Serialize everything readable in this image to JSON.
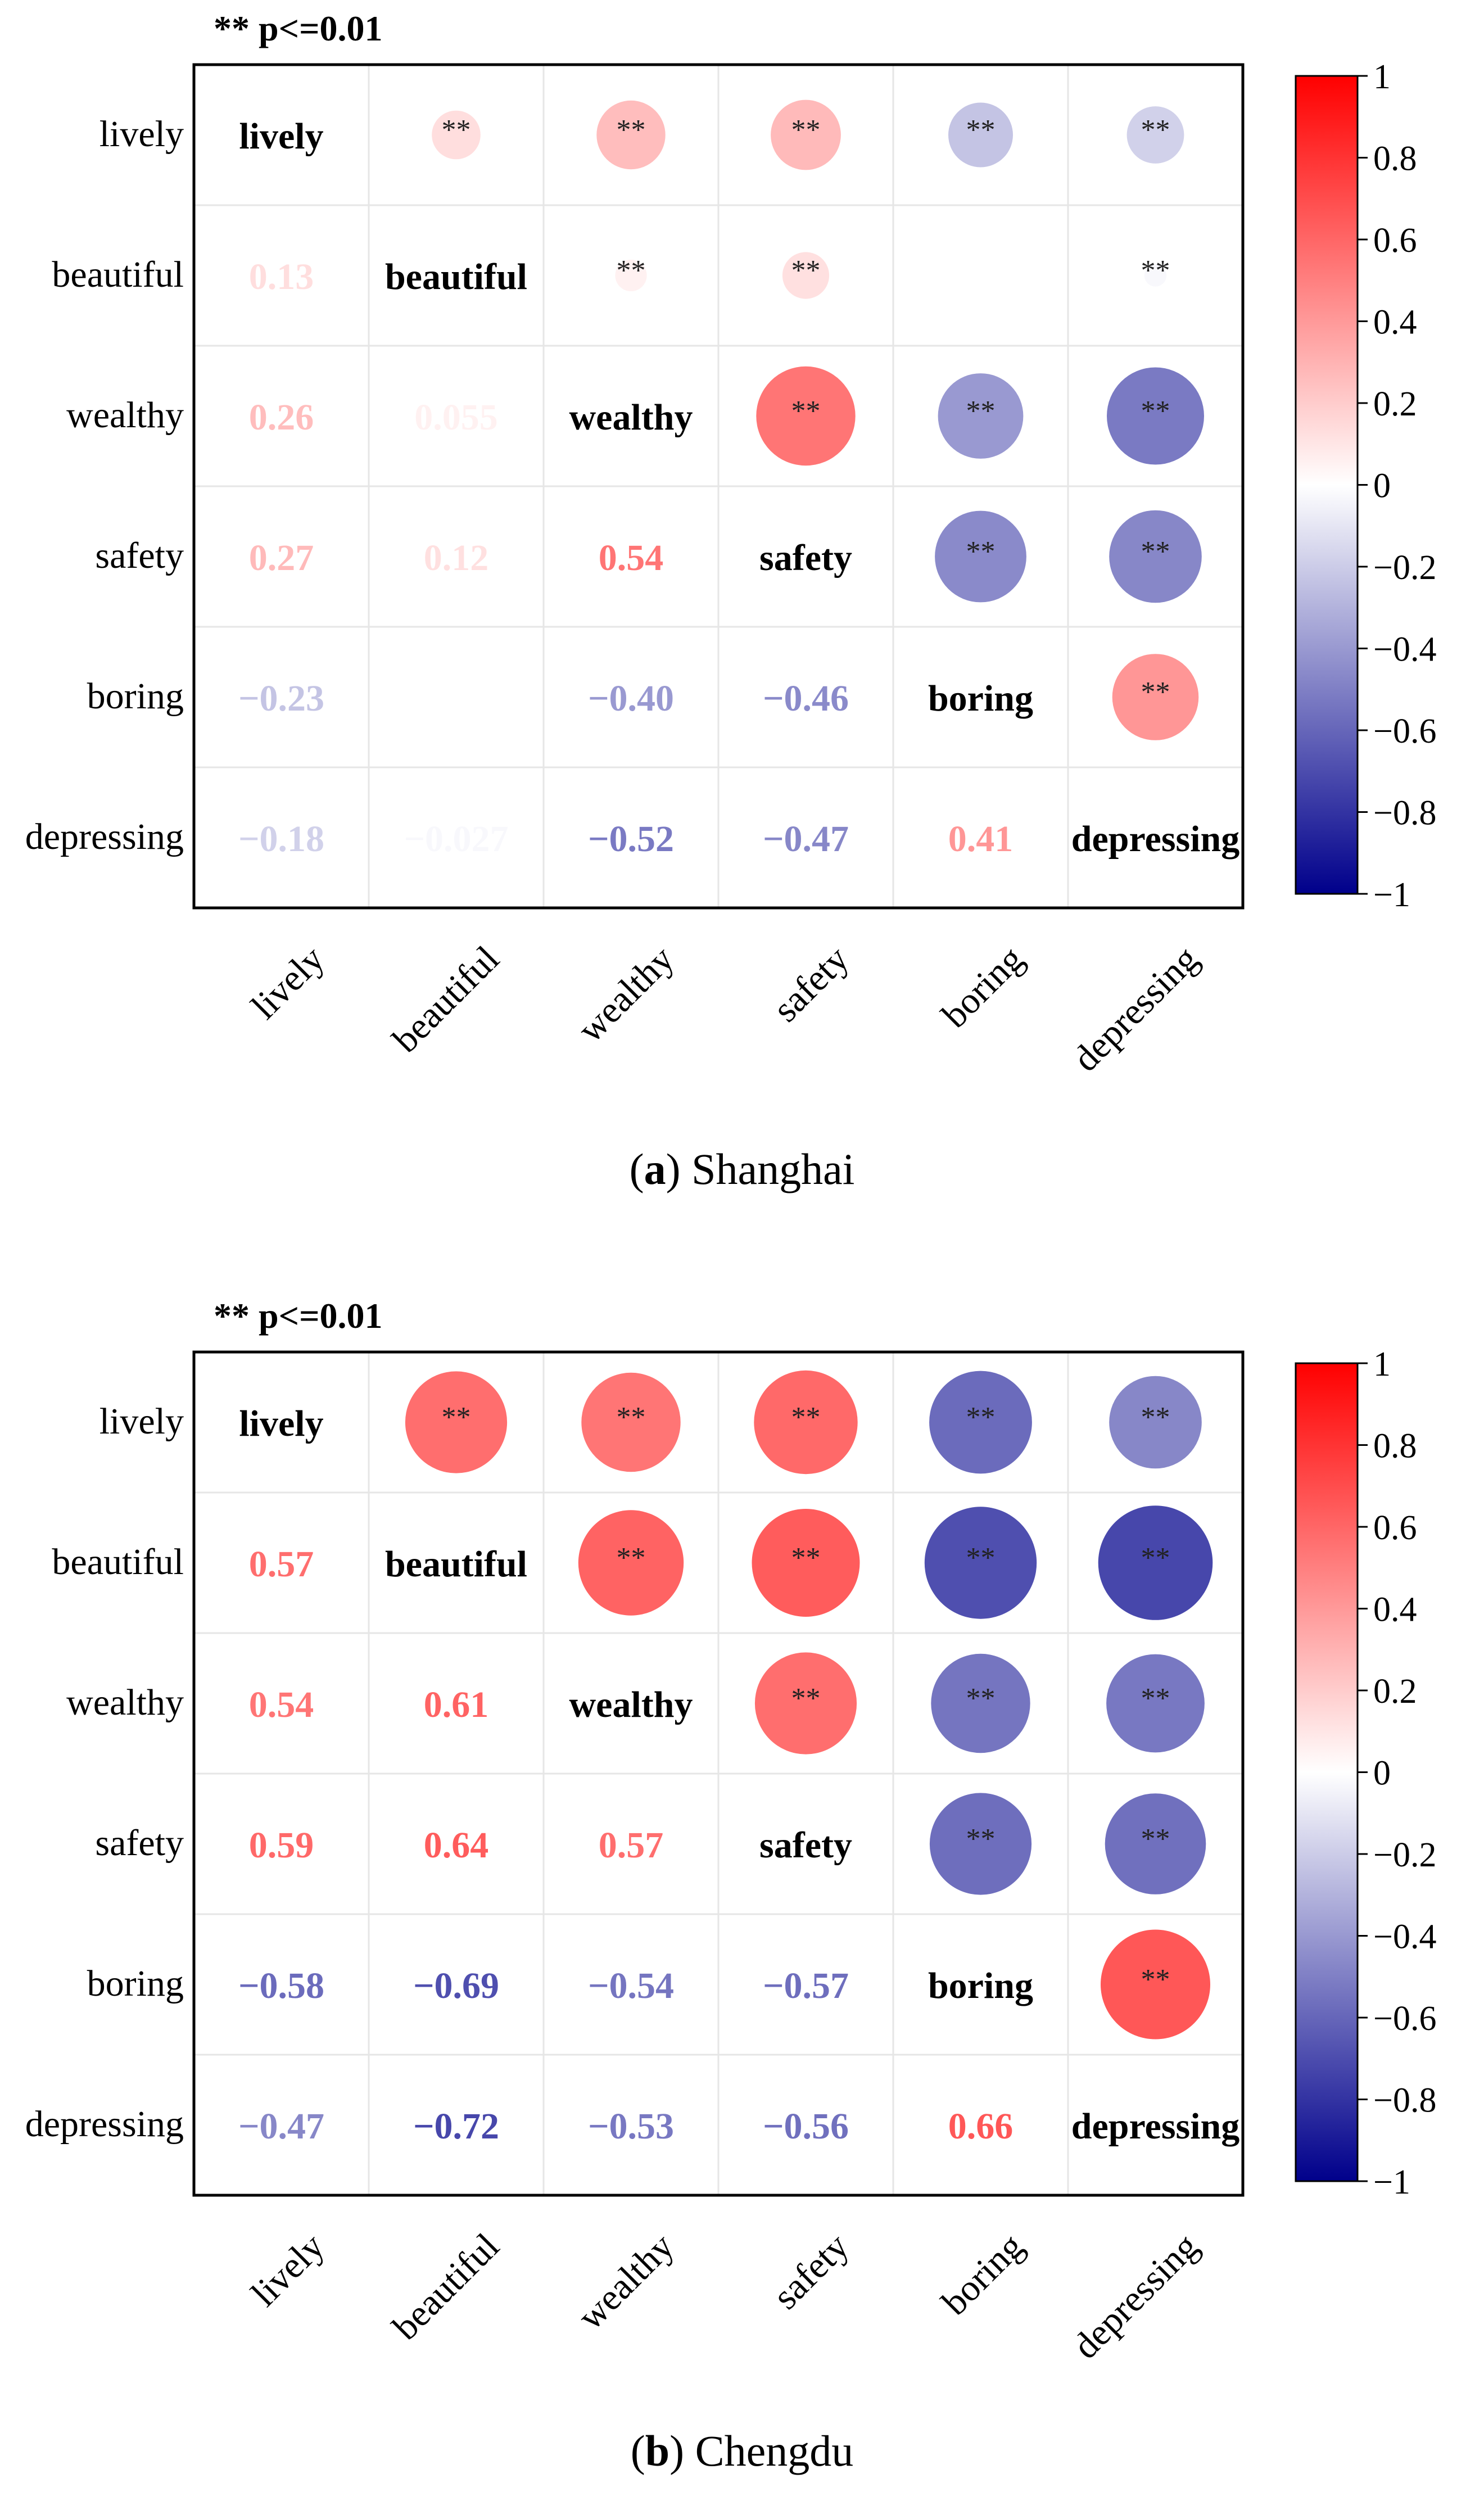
{
  "chart_data": [
    {
      "type": "heatmap",
      "title": "",
      "significance_note": "** p<=0.01",
      "variables": [
        "lively",
        "beautiful",
        "wealthy",
        "safety",
        "boring",
        "depressing"
      ],
      "caption_label": "a",
      "caption_text": "Shanghai",
      "colorbar": {
        "range": [
          -1,
          1
        ],
        "ticks": [
          "1",
          "0.8",
          "0.6",
          "0.4",
          "0.2",
          "0",
          "−0.2",
          "−0.4",
          "−0.6",
          "−0.8",
          "−1"
        ],
        "colors": {
          "negative": "#00008b",
          "zero": "#ffffff",
          "positive": "#ff0000"
        }
      },
      "lower_triangle_labels": [
        [
          null,
          null,
          null,
          null,
          null,
          null
        ],
        [
          "0.13",
          null,
          null,
          null,
          null,
          null
        ],
        [
          "0.26",
          "0.055",
          null,
          null,
          null,
          null
        ],
        [
          "0.27",
          "0.12",
          "0.54",
          null,
          null,
          null
        ],
        [
          "−0.23",
          "",
          "−0.40",
          "−0.46",
          null,
          null
        ],
        [
          "−0.18",
          "−0.027",
          "−0.52",
          "−0.47",
          "0.41",
          null
        ]
      ],
      "correlations": [
        [
          1,
          0.13,
          0.26,
          0.27,
          -0.23,
          -0.18
        ],
        [
          0.13,
          1,
          0.055,
          0.12,
          0.0,
          -0.027
        ],
        [
          0.26,
          0.055,
          1,
          0.54,
          -0.4,
          -0.52
        ],
        [
          0.27,
          0.12,
          0.54,
          1,
          -0.46,
          -0.47
        ],
        [
          -0.23,
          0.0,
          -0.4,
          -0.46,
          1,
          0.41
        ],
        [
          -0.18,
          -0.027,
          -0.52,
          -0.47,
          0.41,
          1
        ]
      ],
      "significant_marks": [
        [
          false,
          true,
          true,
          true,
          true,
          true
        ],
        [
          true,
          false,
          true,
          true,
          false,
          true
        ],
        [
          true,
          false,
          false,
          true,
          true,
          true
        ],
        [
          true,
          true,
          true,
          false,
          true,
          true
        ],
        [
          true,
          false,
          true,
          true,
          false,
          true
        ],
        [
          true,
          true,
          true,
          true,
          true,
          false
        ]
      ],
      "significance_symbol": "**"
    },
    {
      "type": "heatmap",
      "title": "",
      "significance_note": "** p<=0.01",
      "variables": [
        "lively",
        "beautiful",
        "wealthy",
        "safety",
        "boring",
        "depressing"
      ],
      "caption_label": "b",
      "caption_text": "Chengdu",
      "colorbar": {
        "range": [
          -1,
          1
        ],
        "ticks": [
          "1",
          "0.8",
          "0.6",
          "0.4",
          "0.2",
          "0",
          "−0.2",
          "−0.4",
          "−0.6",
          "−0.8",
          "−1"
        ],
        "colors": {
          "negative": "#00008b",
          "zero": "#ffffff",
          "positive": "#ff0000"
        }
      },
      "lower_triangle_labels": [
        [
          null,
          null,
          null,
          null,
          null,
          null
        ],
        [
          "0.57",
          null,
          null,
          null,
          null,
          null
        ],
        [
          "0.54",
          "0.61",
          null,
          null,
          null,
          null
        ],
        [
          "0.59",
          "0.64",
          "0.57",
          null,
          null,
          null
        ],
        [
          "−0.58",
          "−0.69",
          "−0.54",
          "−0.57",
          null,
          null
        ],
        [
          "−0.47",
          "−0.72",
          "−0.53",
          "−0.56",
          "0.66",
          null
        ]
      ],
      "correlations": [
        [
          1,
          0.57,
          0.54,
          0.59,
          -0.58,
          -0.47
        ],
        [
          0.57,
          1,
          0.61,
          0.64,
          -0.69,
          -0.72
        ],
        [
          0.54,
          0.61,
          1,
          0.57,
          -0.54,
          -0.53
        ],
        [
          0.59,
          0.64,
          0.57,
          1,
          -0.57,
          -0.56
        ],
        [
          -0.58,
          -0.69,
          -0.54,
          -0.57,
          1,
          0.66
        ],
        [
          -0.47,
          -0.72,
          -0.53,
          -0.56,
          0.66,
          1
        ]
      ],
      "significant_marks": [
        [
          false,
          true,
          true,
          true,
          true,
          true
        ],
        [
          true,
          false,
          true,
          true,
          true,
          true
        ],
        [
          true,
          true,
          false,
          true,
          true,
          true
        ],
        [
          true,
          true,
          true,
          false,
          true,
          true
        ],
        [
          true,
          true,
          true,
          true,
          false,
          true
        ],
        [
          true,
          true,
          true,
          true,
          true,
          false
        ]
      ],
      "significance_symbol": "**"
    }
  ]
}
